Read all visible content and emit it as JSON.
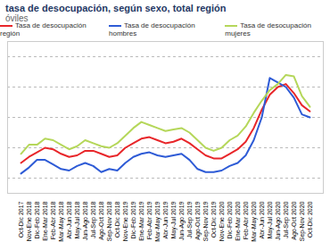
{
  "chart_data": {
    "type": "line",
    "title": "tasa de desocupación, según sexo, total región",
    "subtitle": "óviles",
    "categories": [
      "Oct-Dic 2017",
      "Nov-Ene 2018",
      "Dic-Feb 2018",
      "Ene-Mar 2018",
      "Feb-Abr 2018",
      "Mar-May 2018",
      "Abr-Jun 2018",
      "May-Jul 2018",
      "Jun-Ago 2018",
      "Jul-Sep 2018",
      "Ago-Oct 2018",
      "Sep-Nov 2018",
      "Oct-Dic 2018",
      "Nov-Ene 2019",
      "Dic-Feb 2019",
      "Ene-Mar 2019",
      "Feb-Abr 2019",
      "Mar-May 2019",
      "Abr-Jun 2019",
      "May-Jul 2019",
      "Jun-Ago 2019",
      "Jul-Sep 2019",
      "Ago-Oct 2019",
      "Sep-Nov 2019",
      "Oct-Dic 2019",
      "Nov-Ene 2020",
      "Dic-Feb 2020",
      "Ene-Mar 2020",
      "Feb-Abr 2020",
      "Mar-May 2020",
      "Abr-Jun 2020",
      "May-Jul 2020",
      "Jun-Ago 2020",
      "Jul-Sep 2020",
      "Ago-Oct 2020",
      "Sep-Nov 2020",
      "Oct-Dic 2020"
    ],
    "series": [
      {
        "name": "Tasa de desocupación región",
        "color": "#e8262a",
        "values": [
          9.0,
          9.4,
          9.7,
          10.0,
          9.9,
          9.6,
          9.4,
          9.5,
          9.8,
          9.8,
          9.6,
          9.4,
          9.5,
          10.0,
          10.3,
          10.6,
          10.7,
          10.5,
          10.3,
          10.4,
          10.6,
          10.3,
          9.9,
          9.5,
          9.3,
          9.3,
          9.6,
          9.9,
          10.4,
          11.3,
          12.5,
          13.5,
          14.0,
          14.2,
          13.6,
          12.8,
          12.4
        ]
      },
      {
        "name": "Tasa de desocupación hombres",
        "color": "#2e5bd6",
        "values": [
          8.3,
          8.7,
          9.2,
          9.2,
          8.9,
          8.6,
          8.5,
          8.8,
          9.0,
          8.8,
          8.4,
          8.6,
          8.5,
          9.0,
          9.4,
          9.6,
          9.7,
          9.5,
          9.4,
          9.5,
          9.6,
          9.2,
          8.6,
          8.4,
          8.4,
          8.5,
          8.8,
          9.0,
          9.5,
          10.5,
          12.0,
          14.6,
          14.3,
          14.0,
          13.3,
          12.2,
          12.0
        ]
      },
      {
        "name": "Tasa de desocupación mujeres",
        "color": "#b5d75a",
        "values": [
          9.6,
          10.2,
          10.2,
          10.6,
          10.5,
          10.2,
          9.9,
          10.1,
          10.5,
          10.3,
          10.1,
          10.0,
          10.3,
          10.8,
          11.3,
          11.7,
          11.5,
          11.3,
          11.1,
          11.2,
          11.3,
          11.0,
          10.5,
          10.0,
          9.8,
          10.0,
          10.5,
          10.8,
          11.4,
          12.3,
          13.1,
          13.8,
          14.2,
          14.8,
          14.7,
          13.4,
          12.7
        ]
      }
    ],
    "ylim": [
      7,
      17
    ],
    "yticks": [
      8,
      10,
      12,
      14,
      16
    ],
    "grid": true,
    "legend": "top",
    "tick_labels": "x"
  }
}
